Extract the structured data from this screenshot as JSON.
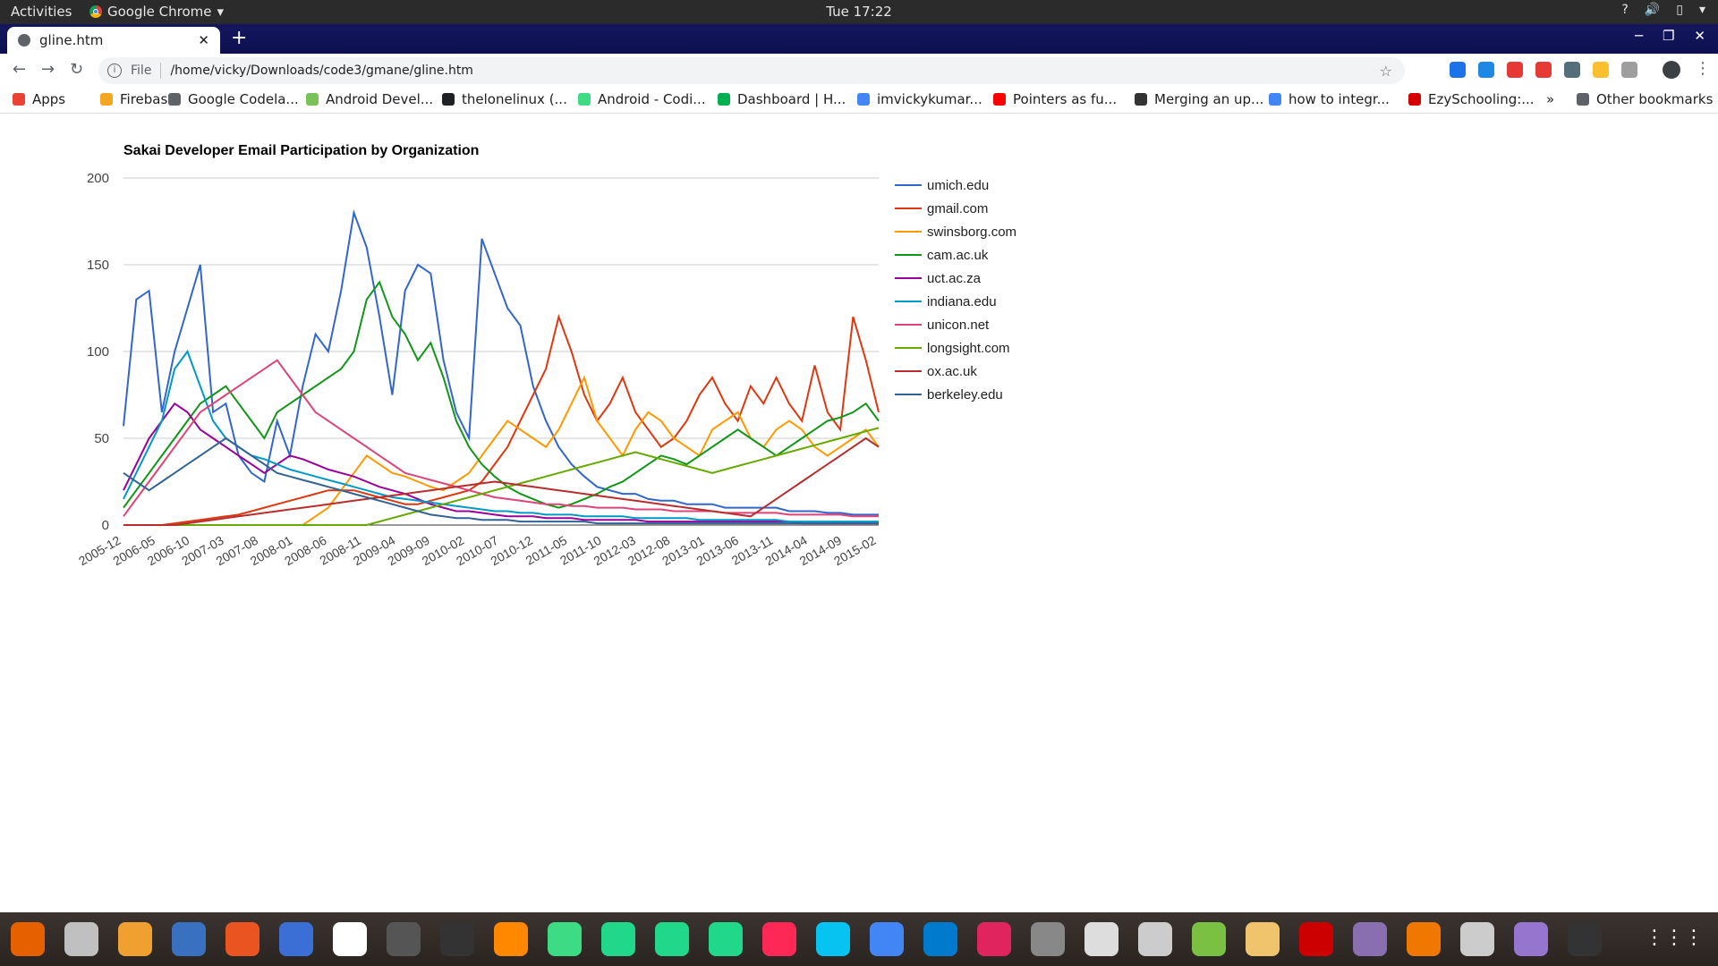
{
  "topbar": {
    "activities": "Activities",
    "app": "Google Chrome",
    "clock": "Tue 17:22"
  },
  "browser": {
    "tab_title": "gline.htm",
    "scheme": "File",
    "url": "/home/vicky/Downloads/code3/gmane/gline.htm",
    "bookmarks": [
      "Apps",
      "Firebase",
      "Google Codela...",
      "Android Devel...",
      "thelonelinux (...",
      "Android - Codi...",
      "Dashboard | H...",
      "imvickykumar...",
      "Pointers as fu...",
      "Merging an up...",
      "how to integr...",
      "EzySchooling:...",
      "Other bookmarks"
    ],
    "bookmark_colors": [
      "#ea4335",
      "#f5a623",
      "#5f6368",
      "#78c257",
      "#202124",
      "#3ddc84",
      "#00b050",
      "#4285f4",
      "#ff0000",
      "#333333",
      "#4285f4",
      "#d50000",
      "#5f6368"
    ],
    "extension_colors": [
      "#1a73e8",
      "#1e88e5",
      "#e53935",
      "#e53935",
      "#546e7a",
      "#fbc02d",
      "#9e9e9e"
    ]
  },
  "chart_data": {
    "type": "line",
    "title": "Sakai Developer Email Participation by Organization",
    "ylim": [
      0,
      200
    ],
    "yticks": [
      0,
      50,
      100,
      150,
      200
    ],
    "x_labels": [
      "2005-12",
      "2006-05",
      "2006-10",
      "2007-03",
      "2007-08",
      "2008-01",
      "2008-06",
      "2008-11",
      "2009-04",
      "2009-09",
      "2010-02",
      "2010-07",
      "2010-12",
      "2011-05",
      "2011-10",
      "2012-03",
      "2012-08",
      "2013-01",
      "2013-06",
      "2013-11",
      "2014-04",
      "2014-09",
      "2015-02"
    ],
    "legend_position": "right",
    "series": [
      {
        "name": "umich.edu",
        "color": "#3366cc",
        "values": [
          57,
          130,
          135,
          65,
          100,
          125,
          150,
          65,
          70,
          40,
          30,
          25,
          60,
          40,
          80,
          110,
          100,
          135,
          180,
          160,
          120,
          75,
          135,
          150,
          145,
          95,
          65,
          50,
          165,
          145,
          125,
          115,
          80,
          60,
          45,
          35,
          28,
          22,
          20,
          18,
          18,
          15,
          14,
          14,
          12,
          12,
          12,
          10,
          10,
          10,
          10,
          10,
          8,
          8,
          8,
          7,
          7,
          6,
          6,
          6
        ]
      },
      {
        "name": "gmail.com",
        "color": "#dc3912",
        "values": [
          0,
          0,
          0,
          0,
          1,
          2,
          3,
          4,
          5,
          6,
          8,
          10,
          12,
          14,
          16,
          18,
          20,
          20,
          20,
          18,
          16,
          14,
          12,
          12,
          14,
          16,
          18,
          20,
          25,
          35,
          45,
          60,
          75,
          90,
          120,
          100,
          75,
          60,
          70,
          85,
          65,
          55,
          45,
          50,
          60,
          75,
          85,
          70,
          60,
          80,
          70,
          85,
          70,
          60,
          92,
          65,
          55,
          120,
          95,
          65
        ]
      },
      {
        "name": "swinsborg.com",
        "color": "#ff9900",
        "values": [
          0,
          0,
          0,
          0,
          0,
          0,
          0,
          0,
          0,
          0,
          0,
          0,
          0,
          0,
          0,
          5,
          10,
          20,
          30,
          40,
          35,
          30,
          28,
          25,
          22,
          20,
          25,
          30,
          40,
          50,
          60,
          55,
          50,
          45,
          55,
          70,
          85,
          60,
          50,
          40,
          55,
          65,
          60,
          50,
          45,
          40,
          55,
          60,
          65,
          50,
          45,
          55,
          60,
          55,
          45,
          40,
          45,
          50,
          55,
          45
        ]
      },
      {
        "name": "cam.ac.uk",
        "color": "#109618",
        "values": [
          10,
          20,
          30,
          40,
          50,
          60,
          70,
          75,
          80,
          70,
          60,
          50,
          65,
          70,
          75,
          80,
          85,
          90,
          100,
          130,
          140,
          120,
          110,
          95,
          105,
          85,
          60,
          45,
          35,
          28,
          22,
          18,
          15,
          12,
          10,
          12,
          15,
          18,
          22,
          25,
          30,
          35,
          40,
          38,
          35,
          40,
          45,
          50,
          55,
          50,
          45,
          40,
          45,
          50,
          55,
          60,
          62,
          65,
          70,
          60
        ]
      },
      {
        "name": "uct.ac.za",
        "color": "#990099",
        "values": [
          20,
          35,
          50,
          60,
          70,
          65,
          55,
          50,
          45,
          40,
          35,
          30,
          35,
          40,
          38,
          35,
          32,
          30,
          28,
          25,
          22,
          20,
          18,
          15,
          12,
          10,
          8,
          8,
          7,
          6,
          5,
          5,
          5,
          4,
          4,
          4,
          3,
          3,
          3,
          3,
          3,
          2,
          2,
          2,
          2,
          2,
          2,
          2,
          2,
          2,
          2,
          2,
          2,
          1,
          1,
          1,
          1,
          1,
          1,
          1
        ]
      },
      {
        "name": "indiana.edu",
        "color": "#0099c6",
        "values": [
          15,
          30,
          45,
          60,
          90,
          100,
          80,
          60,
          50,
          45,
          40,
          38,
          35,
          32,
          30,
          28,
          26,
          24,
          22,
          20,
          18,
          16,
          15,
          14,
          13,
          12,
          11,
          10,
          9,
          8,
          8,
          7,
          7,
          6,
          6,
          6,
          5,
          5,
          5,
          5,
          4,
          4,
          4,
          4,
          4,
          3,
          3,
          3,
          3,
          3,
          3,
          3,
          2,
          2,
          2,
          2,
          2,
          2,
          2,
          2
        ]
      },
      {
        "name": "unicon.net",
        "color": "#dd4477",
        "values": [
          5,
          15,
          25,
          35,
          45,
          55,
          65,
          70,
          75,
          80,
          85,
          90,
          95,
          85,
          75,
          65,
          60,
          55,
          50,
          45,
          40,
          35,
          30,
          28,
          26,
          24,
          22,
          20,
          18,
          16,
          15,
          14,
          13,
          12,
          12,
          11,
          11,
          10,
          10,
          10,
          9,
          9,
          9,
          8,
          8,
          8,
          8,
          7,
          7,
          7,
          7,
          7,
          6,
          6,
          6,
          6,
          6,
          5,
          5,
          5
        ]
      },
      {
        "name": "longsight.com",
        "color": "#66aa00",
        "values": [
          0,
          0,
          0,
          0,
          0,
          0,
          0,
          0,
          0,
          0,
          0,
          0,
          0,
          0,
          0,
          0,
          0,
          0,
          0,
          0,
          2,
          4,
          6,
          8,
          10,
          12,
          14,
          16,
          18,
          20,
          22,
          24,
          26,
          28,
          30,
          32,
          34,
          36,
          38,
          40,
          42,
          40,
          38,
          36,
          34,
          32,
          30,
          32,
          34,
          36,
          38,
          40,
          42,
          44,
          46,
          48,
          50,
          52,
          54,
          56
        ]
      },
      {
        "name": "ox.ac.uk",
        "color": "#b82e2e",
        "values": [
          0,
          0,
          0,
          0,
          0,
          1,
          2,
          3,
          4,
          5,
          6,
          7,
          8,
          9,
          10,
          11,
          12,
          13,
          14,
          15,
          16,
          17,
          18,
          19,
          20,
          21,
          22,
          23,
          24,
          25,
          24,
          23,
          22,
          21,
          20,
          19,
          18,
          17,
          16,
          15,
          14,
          13,
          12,
          11,
          10,
          9,
          8,
          7,
          6,
          5,
          10,
          15,
          20,
          25,
          30,
          35,
          40,
          45,
          50,
          45
        ]
      },
      {
        "name": "berkeley.edu",
        "color": "#316395",
        "values": [
          30,
          25,
          20,
          25,
          30,
          35,
          40,
          45,
          50,
          45,
          40,
          35,
          30,
          28,
          26,
          24,
          22,
          20,
          18,
          16,
          14,
          12,
          10,
          8,
          6,
          5,
          4,
          4,
          3,
          3,
          3,
          2,
          2,
          2,
          2,
          2,
          2,
          1,
          1,
          1,
          1,
          1,
          1,
          1,
          1,
          1,
          1,
          1,
          1,
          1,
          1,
          1,
          1,
          1,
          1,
          1,
          1,
          1,
          1,
          1
        ]
      }
    ]
  }
}
